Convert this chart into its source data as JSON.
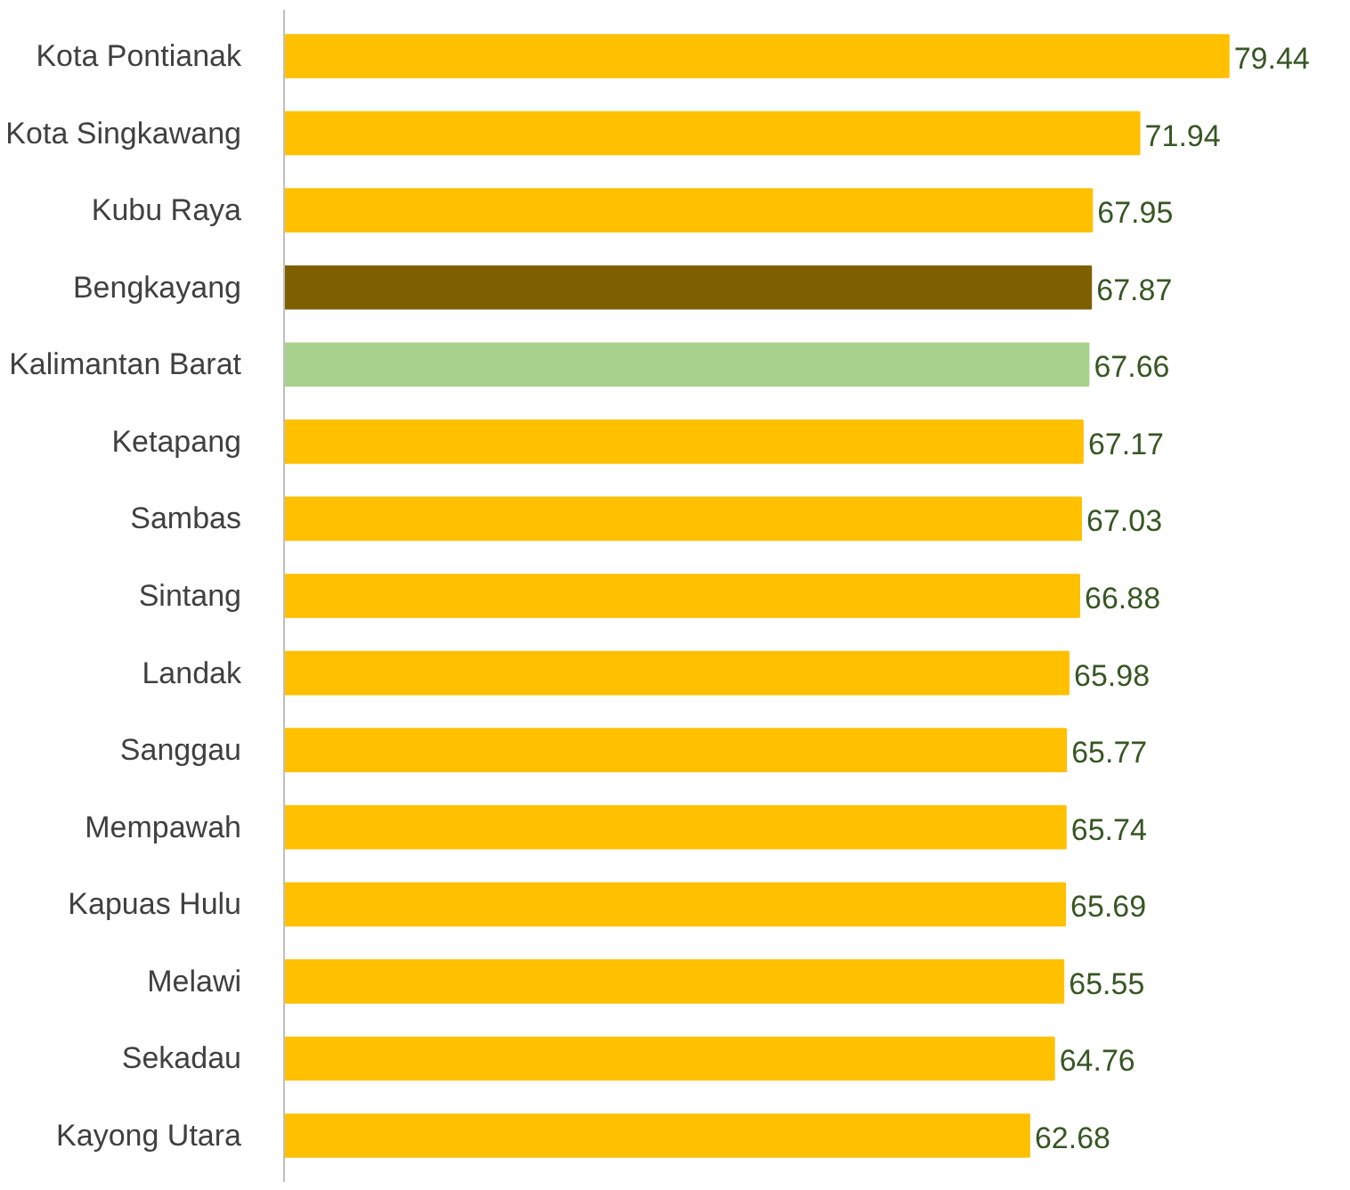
{
  "chart_data": {
    "type": "bar",
    "orientation": "horizontal",
    "data_labels": true,
    "grid": false,
    "categories": [
      "Kota Pontianak",
      "Kota Singkawang",
      "Kubu Raya",
      "Bengkayang",
      "Kalimantan Barat",
      "Ketapang",
      "Sambas",
      "Sintang",
      "Landak",
      "Sanggau",
      "Mempawah",
      "Kapuas Hulu",
      "Melawi",
      "Sekadau",
      "Kayong Utara"
    ],
    "values": [
      79.44,
      71.94,
      67.95,
      67.87,
      67.66,
      67.17,
      67.03,
      66.88,
      65.98,
      65.77,
      65.74,
      65.69,
      65.55,
      64.76,
      62.68
    ],
    "colors": [
      "#ffc000",
      "#ffc000",
      "#ffc000",
      "#7f6000",
      "#a9d18e",
      "#ffc000",
      "#ffc000",
      "#ffc000",
      "#ffc000",
      "#ffc000",
      "#ffc000",
      "#ffc000",
      "#ffc000",
      "#ffc000",
      "#ffc000"
    ]
  }
}
